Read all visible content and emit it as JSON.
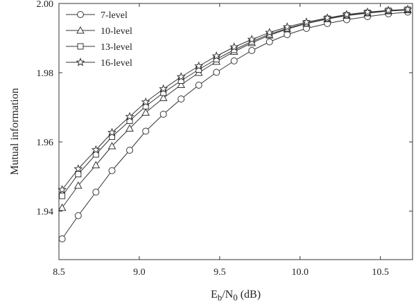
{
  "chart_data": {
    "type": "line",
    "title": "",
    "xlabel": {
      "main": "E",
      "sub1": "b",
      "mid": "/N",
      "sub2": "0",
      "unit": " (dB)"
    },
    "ylabel": "Mutual information",
    "xlim": [
      8.5,
      10.7
    ],
    "ylim": [
      1.926,
      2.0
    ],
    "xticks": [
      8.5,
      9.0,
      9.5,
      10.0,
      10.5
    ],
    "xtick_labels": [
      "8.5",
      "9.0",
      "9.5",
      "10.0",
      "10.5"
    ],
    "yticks": [
      1.94,
      1.96,
      1.98,
      2.0
    ],
    "ytick_labels": [
      "1.94",
      "1.96",
      "1.98",
      "2.00"
    ],
    "grid": false,
    "legend_position": "top-left",
    "x": [
      8.52,
      8.62,
      8.73,
      8.83,
      8.94,
      9.04,
      9.15,
      9.26,
      9.37,
      9.48,
      9.59,
      9.7,
      9.81,
      9.92,
      10.04,
      10.17,
      10.29,
      10.42,
      10.55,
      10.67
    ],
    "series": [
      {
        "name": "7-level",
        "marker": "circle",
        "values": [
          1.932,
          1.9387,
          1.9455,
          1.9517,
          1.9576,
          1.9631,
          1.968,
          1.9724,
          1.9764,
          1.9801,
          1.9834,
          1.9864,
          1.9889,
          1.991,
          1.9928,
          1.9942,
          1.9953,
          1.9962,
          1.997,
          1.9975
        ]
      },
      {
        "name": "10-level",
        "marker": "triangle",
        "values": [
          1.941,
          1.9474,
          1.9533,
          1.9588,
          1.9639,
          1.9685,
          1.9727,
          1.9765,
          1.98,
          1.9832,
          1.9861,
          1.9886,
          1.9908,
          1.9926,
          1.9942,
          1.9955,
          1.9965,
          1.9972,
          1.9978,
          1.9981
        ]
      },
      {
        "name": "13-level",
        "marker": "square",
        "values": [
          1.9444,
          1.9507,
          1.9564,
          1.9615,
          1.9661,
          1.9703,
          1.9742,
          1.9777,
          1.9809,
          1.9839,
          1.9866,
          1.989,
          1.9911,
          1.9928,
          1.9943,
          1.9956,
          1.9966,
          1.9973,
          1.9979,
          1.9982
        ]
      },
      {
        "name": "16-level",
        "marker": "star",
        "values": [
          1.9462,
          1.9522,
          1.9577,
          1.9627,
          1.9673,
          1.9715,
          1.9753,
          1.9788,
          1.9819,
          1.9848,
          1.9874,
          1.9896,
          1.9916,
          1.9932,
          1.9946,
          1.9958,
          1.9968,
          1.9975,
          1.998,
          1.9983
        ]
      }
    ]
  }
}
